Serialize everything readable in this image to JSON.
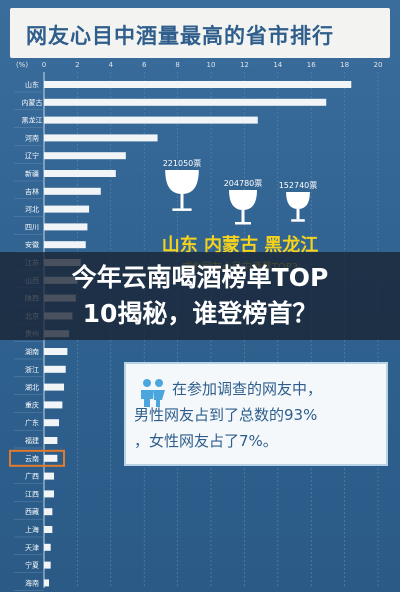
{
  "poster": {
    "title": "网友心目中酒量最高的省市排行"
  },
  "chart_data": {
    "type": "bar",
    "orientation": "horizontal",
    "unit_label": "(%)",
    "xlim": [
      0,
      20
    ],
    "x_ticks": [
      "0",
      "2",
      "4",
      "6",
      "8",
      "10",
      "12",
      "14",
      "16",
      "18",
      "20"
    ],
    "categories": [
      "山东",
      "内蒙古",
      "黑龙江",
      "河南",
      "辽宁",
      "新疆",
      "吉林",
      "河北",
      "四川",
      "安徽",
      "江苏",
      "山西",
      "陕西",
      "北京",
      "贵州",
      "湖南",
      "浙江",
      "湖北",
      "重庆",
      "广东",
      "福建",
      "云南",
      "广西",
      "江西",
      "西藏",
      "上海",
      "天津",
      "宁夏",
      "海南"
    ],
    "values": [
      18.4,
      16.9,
      12.8,
      6.8,
      4.9,
      4.3,
      3.4,
      2.7,
      2.6,
      2.5,
      2.2,
      2.0,
      1.9,
      1.7,
      1.5,
      1.4,
      1.3,
      1.2,
      1.1,
      0.9,
      0.8,
      0.8,
      0.6,
      0.6,
      0.5,
      0.5,
      0.4,
      0.4,
      0.3
    ],
    "highlight": "云南",
    "bar_color": "#f2f5f8",
    "highlight_box_color": "#e07b2e",
    "votes": [
      {
        "label": "221050票"
      },
      {
        "label": "204780票"
      },
      {
        "label": "152740票"
      }
    ],
    "top3_heading": "山东  内蒙古  黑龙江",
    "top3_caption": "成为网友心目中酒量TOP3"
  },
  "result_box": {
    "lines": [
      "在参加调查的网友中，",
      "男性网友占到了总数的93%",
      "，女性网友占了7%。"
    ]
  },
  "overlay": {
    "line1": "今年云南喝酒榜单TOP",
    "line2": "10揭秘，谁登榜首？"
  },
  "colors": {
    "background": "#2f618f",
    "title_bg": "#f3f4f2",
    "title_text": "#2f5e8c",
    "top3_yellow": "#f5d21c",
    "glass": "#ffffff"
  }
}
